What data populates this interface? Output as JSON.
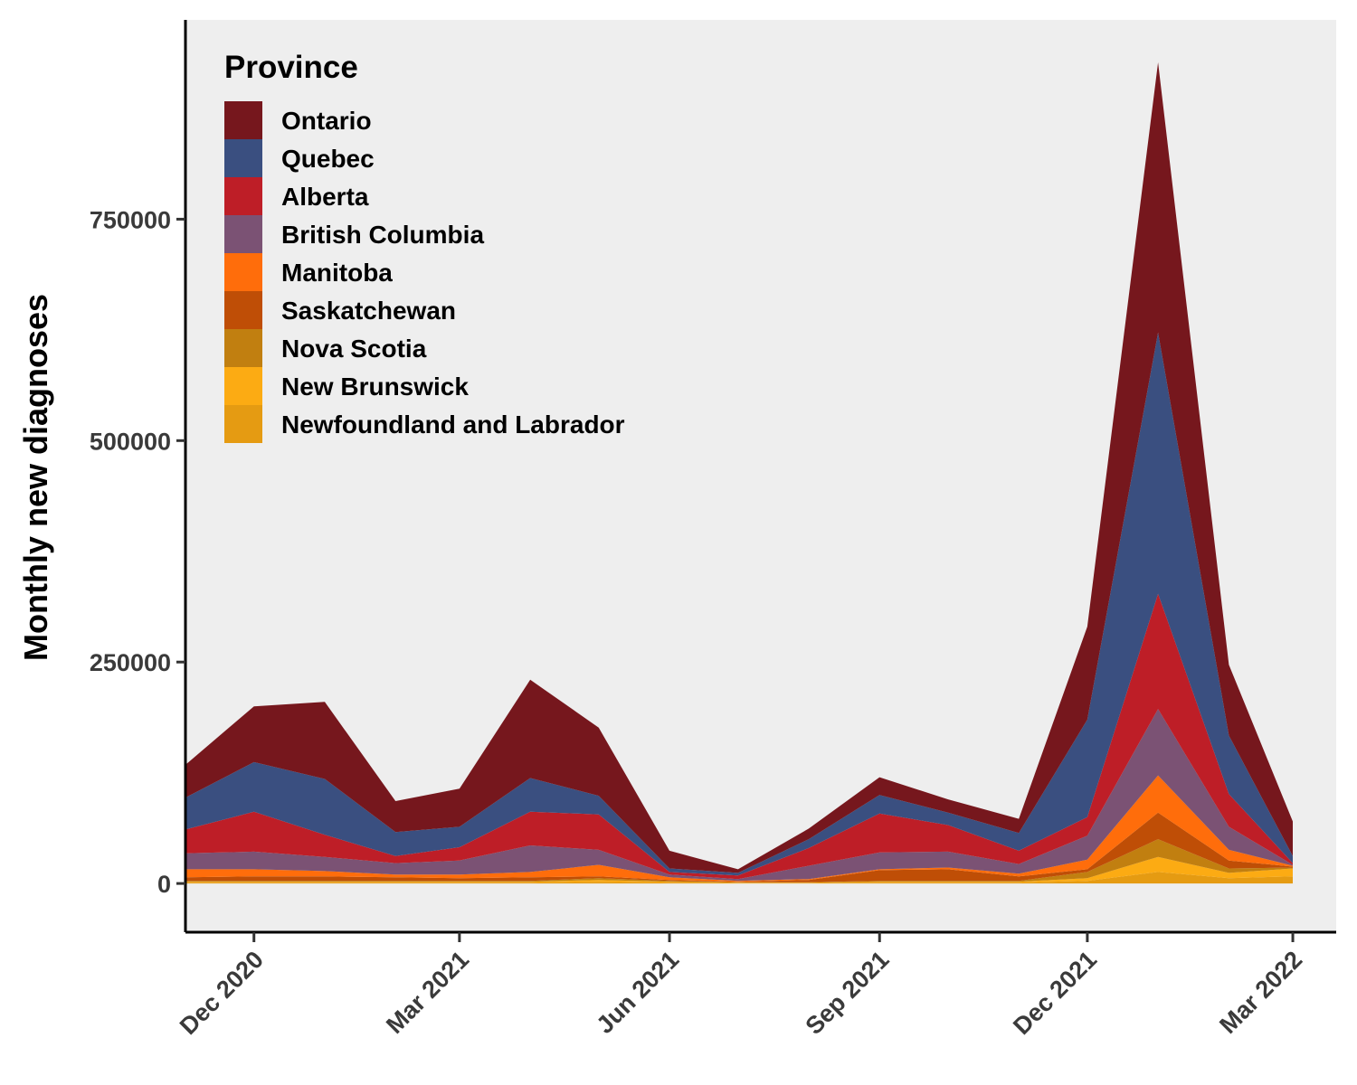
{
  "chart_data": {
    "type": "area",
    "stacked": true,
    "ylabel": "Monthly new diagnoses",
    "xlabel": "",
    "ylim": [
      -55000,
      975000
    ],
    "xlim": [
      "2020-11-01",
      "2022-03-20"
    ],
    "grid": false,
    "background": "#eeeeee",
    "legend": {
      "title": "Province",
      "placement": "top-left"
    },
    "x_ticks": [
      "2020-12-01",
      "2021-03-01",
      "2021-06-01",
      "2021-09-01",
      "2021-12-01",
      "2022-03-01"
    ],
    "x_tick_labels": [
      "Dec 2020",
      "Mar 2021",
      "Jun 2021",
      "Sep 2021",
      "Dec 2021",
      "Mar 2022"
    ],
    "y_ticks": [
      0,
      250000,
      500000,
      750000
    ],
    "y_tick_labels": [
      "0",
      "250000",
      "500000",
      "750000"
    ],
    "x": [
      "2020-11-01",
      "2020-12-01",
      "2021-01-01",
      "2021-02-01",
      "2021-03-01",
      "2021-04-01",
      "2021-05-01",
      "2021-06-01",
      "2021-07-01",
      "2021-08-01",
      "2021-09-01",
      "2021-10-01",
      "2021-11-01",
      "2021-12-01",
      "2022-01-01",
      "2022-02-01",
      "2022-03-01"
    ],
    "series": [
      {
        "name": "Newfoundland and Labrador",
        "color": "#e59b12",
        "values": [
          1000,
          1000,
          1000,
          1000,
          1000,
          1000,
          2000,
          1000,
          500,
          500,
          1000,
          1000,
          1000,
          3000,
          13000,
          6000,
          8000
        ]
      },
      {
        "name": "New Brunswick",
        "color": "#fcab13",
        "values": [
          1000,
          1000,
          1000,
          1000,
          1000,
          1000,
          2000,
          1000,
          500,
          500,
          1000,
          1000,
          1000,
          3000,
          17000,
          6000,
          9000
        ]
      },
      {
        "name": "Nova Scotia",
        "color": "#c17f10",
        "values": [
          1000,
          1000,
          1000,
          1000,
          1000,
          1000,
          2000,
          1000,
          500,
          500,
          1000,
          1000,
          1000,
          7000,
          20000,
          5000,
          1000
        ]
      },
      {
        "name": "Saskatchewan",
        "color": "#bf4e06",
        "values": [
          4000,
          5000,
          5000,
          4000,
          3000,
          4000,
          2000,
          1000,
          500,
          2500,
          12000,
          13000,
          5000,
          3000,
          30000,
          9000,
          1000
        ]
      },
      {
        "name": "Manitoba",
        "color": "#ff6d0b",
        "values": [
          9000,
          8000,
          6000,
          3000,
          4000,
          6000,
          13000,
          3000,
          1000,
          1000,
          1000,
          2000,
          3000,
          11000,
          42000,
          12000,
          1000
        ]
      },
      {
        "name": "British Columbia",
        "color": "#7b5274",
        "values": [
          18000,
          20000,
          16000,
          13000,
          16000,
          30000,
          17000,
          3000,
          2000,
          15000,
          19000,
          18000,
          11000,
          27000,
          75000,
          26000,
          1000
        ]
      },
      {
        "name": "Alberta",
        "color": "#be1e27",
        "values": [
          27000,
          45000,
          25000,
          8000,
          15000,
          38000,
          40000,
          3000,
          4000,
          20000,
          44000,
          30000,
          15000,
          21000,
          130000,
          37000,
          2000
        ]
      },
      {
        "name": "Quebec",
        "color": "#3a4f80",
        "values": [
          36000,
          56000,
          63000,
          27000,
          23000,
          38000,
          21000,
          4000,
          3000,
          10000,
          21000,
          14000,
          20000,
          110000,
          295000,
          66000,
          8000
        ]
      },
      {
        "name": "Ontario",
        "color": "#76171d",
        "values": [
          37000,
          63000,
          87000,
          35000,
          43000,
          111000,
          77000,
          20000,
          4000,
          12000,
          20000,
          15000,
          16000,
          105000,
          305000,
          80000,
          39000
        ]
      }
    ]
  }
}
